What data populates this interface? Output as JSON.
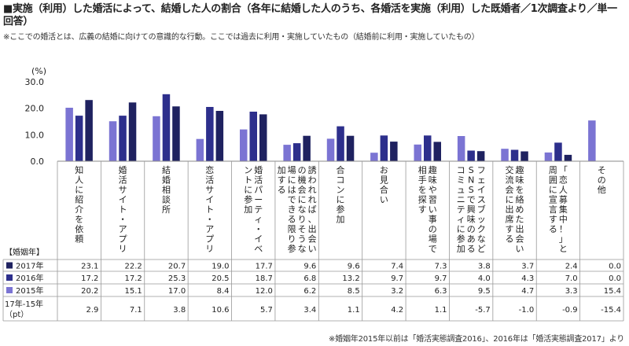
{
  "title": "■実施（利用）した婚活によって、結婚した人の割合（各年に結婚した人のうち、各婚活を実施（利用）した既婚者／1次調査より／単一回答）",
  "note": "※ここでの婚活とは、広義の結婚に向けての意識的な行動。ここでは過去に利用・実施していたもの（結婚前に利用・実施していたもの）",
  "footnote": "※婚姻年2015年以前は「婚活実態調査2016」、2016年は「婚活実態調査2017」より",
  "chart_data": {
    "type": "bar",
    "unit_label": "(%)",
    "ylim": [
      0,
      30
    ],
    "yticks": [
      "0.0",
      "10.0",
      "20.0",
      "30.0"
    ],
    "grid": false,
    "table_header": "【婚姻年】",
    "categories": [
      "知人に紹介を依頼",
      "婚活サイト・アプリ",
      "結婚相談所",
      "恋活サイト・アプリ",
      "婚活パーティ・イベントに参加",
      "誘われれば、出会いの機会になりそうな場にはできる限り参加する",
      "合コンに参加",
      "お見合い",
      "趣味や習い事の場で相手を探す",
      "フェイスブックなどSNSで興味のあるコミュニティに参加",
      "趣味を絡めた出会い交流会に出席する",
      "「恋人募集中！」と周囲に宣言する",
      "その他"
    ],
    "series": [
      {
        "name": "2015年",
        "color": "#7b74d3",
        "values": [
          20.2,
          15.1,
          17.0,
          8.4,
          12.0,
          6.2,
          8.5,
          3.2,
          6.3,
          9.5,
          4.7,
          3.3,
          15.4
        ],
        "labels": [
          "20.2",
          "15.1",
          "17.0",
          "8.4",
          "12.0",
          "6.2",
          "8.5",
          "3.2",
          "6.3",
          "9.5",
          "4.7",
          "3.3",
          "15.4"
        ]
      },
      {
        "name": "2016年",
        "color": "#2d2f8c",
        "values": [
          17.2,
          17.2,
          25.3,
          20.5,
          18.7,
          6.8,
          13.2,
          9.7,
          9.7,
          4.0,
          4.3,
          7.0,
          0.0
        ],
        "labels": [
          "17.2",
          "17.2",
          "25.3",
          "20.5",
          "18.7",
          "6.8",
          "13.2",
          "9.7",
          "9.7",
          "4.0",
          "4.3",
          "7.0",
          "0.0"
        ]
      },
      {
        "name": "2017年",
        "color": "#1f2260",
        "values": [
          23.1,
          22.2,
          20.7,
          19.0,
          17.7,
          9.6,
          9.6,
          7.4,
          7.3,
          3.8,
          3.7,
          2.4,
          0.0
        ],
        "labels": [
          "23.1",
          "22.2",
          "20.7",
          "19.0",
          "17.7",
          "9.6",
          "9.6",
          "7.4",
          "7.3",
          "3.8",
          "3.7",
          "2.4",
          "0.0"
        ]
      }
    ],
    "table_rows": [
      {
        "label": "2017年",
        "series_index": 2
      },
      {
        "label": "2016年",
        "series_index": 1
      },
      {
        "label": "2015年",
        "series_index": 0
      }
    ],
    "diff_row": {
      "label_lines": [
        "17年-15年",
        "（pt）"
      ],
      "values": [
        "2.9",
        "7.1",
        "3.8",
        "10.6",
        "5.7",
        "3.4",
        "1.1",
        "4.2",
        "1.1",
        "-5.7",
        "-1.0",
        "-0.9",
        "-15.4"
      ]
    }
  }
}
